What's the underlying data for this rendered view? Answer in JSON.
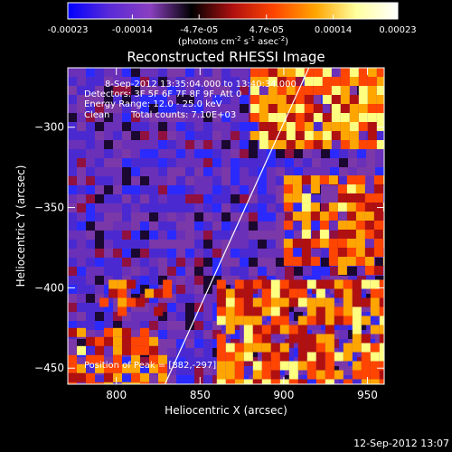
{
  "chart_data": {
    "type": "heatmap",
    "title": "Reconstructed RHESSI Image",
    "xlabel": "Heliocentric X (arcsec)",
    "ylabel": "Heliocentric Y (arcsec)",
    "xlim": [
      771,
      960
    ],
    "ylim": [
      -460,
      -263
    ],
    "xticks": [
      800,
      850,
      900,
      950
    ],
    "yticks": [
      -300,
      -350,
      -400,
      -450
    ],
    "colorbar": {
      "ticks": [
        -0.00023,
        -0.00014,
        -4.7e-05,
        4.7e-05,
        0.00014,
        0.00023
      ],
      "tick_labels": [
        "-0.00023",
        "-0.00014",
        "-4.7e-05",
        "4.7e-05",
        "0.00014",
        "0.00023"
      ],
      "unit": "(photons cm",
      "unit_sup1": "-2",
      "unit_mid": " s",
      "unit_sup2": "-1",
      "unit_mid2": " asec",
      "unit_sup3": "-2",
      "unit_end": ")",
      "range": [
        -0.00023,
        0.00023
      ],
      "colormap": [
        "#0000ff",
        "#5a2ad8",
        "#8a3fc0",
        "#000000",
        "#b01010",
        "#ff4500",
        "#ffa500",
        "#ffffa0",
        "#ffffff"
      ]
    },
    "annotations": {
      "time": "8-Sep-2012 13:35:04.000 to 13:40:34.000",
      "detectors": "Detectors: 3F 5F 6F 7F 8F 9F, Att 0",
      "energy": "Energy Range: 12.0 - 25.0 keV",
      "algorithm": "Clean",
      "counts": "Total counts: 7.10E+03",
      "peak": "Position of Peak = [882,-297]"
    },
    "limb_line": [
      [
        829,
        -460
      ],
      [
        915,
        -263
      ]
    ],
    "bright_bands": [
      {
        "x": [
          880,
          960
        ],
        "y": [
          -310,
          -263
        ],
        "level": 0.9
      },
      {
        "x": [
          900,
          960
        ],
        "y": [
          -390,
          -330
        ],
        "level": 0.75
      },
      {
        "x": [
          860,
          960
        ],
        "y": [
          -460,
          -395
        ],
        "level": 0.8
      },
      {
        "x": [
          771,
          830
        ],
        "y": [
          -460,
          -425
        ],
        "level": 0.7
      },
      {
        "x": [
          790,
          830
        ],
        "y": [
          -415,
          -395
        ],
        "level": 0.6
      }
    ]
  },
  "footer": {
    "timestamp": "12-Sep-2012 13:07"
  }
}
